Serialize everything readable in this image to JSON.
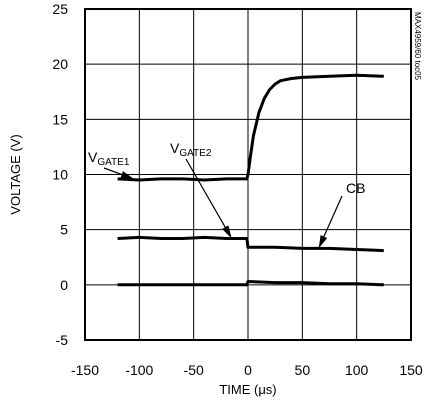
{
  "chart_data": {
    "type": "line",
    "title": "",
    "xlabel": "TIME (μs)",
    "ylabel": "VOLTAGE (V)",
    "xlim": [
      -150,
      150
    ],
    "ylim": [
      -5,
      25
    ],
    "xticks": [
      -150,
      -100,
      -50,
      0,
      50,
      100,
      150
    ],
    "yticks": [
      -5,
      0,
      5,
      10,
      15,
      20,
      25
    ],
    "grid": true,
    "legend": "none",
    "side_note": "MAX4959/60 toc05",
    "annotations": [
      {
        "text": "V",
        "sub": "GATE1",
        "points_to": [
          -105,
          9.6
        ]
      },
      {
        "text": "V",
        "sub": "GATE2",
        "points_to": [
          -15,
          4.2
        ]
      },
      {
        "text": "CB",
        "points_to": [
          65,
          3.3
        ]
      }
    ],
    "series": [
      {
        "x": [
          -120,
          -100,
          -80,
          -60,
          -40,
          -20,
          -5,
          -1,
          0,
          2,
          5,
          10,
          15,
          20,
          25,
          30,
          40,
          50,
          75,
          100,
          125
        ],
        "y": [
          9.6,
          9.5,
          9.6,
          9.6,
          9.5,
          9.6,
          9.6,
          9.6,
          10.0,
          11.5,
          13.5,
          15.6,
          16.9,
          17.7,
          18.2,
          18.5,
          18.7,
          18.8,
          18.9,
          19.0,
          18.9
        ]
      },
      {
        "x": [
          -120,
          -100,
          -80,
          -60,
          -40,
          -20,
          -1,
          0,
          25,
          50,
          75,
          100,
          125
        ],
        "y": [
          4.2,
          4.3,
          4.2,
          4.2,
          4.3,
          4.2,
          4.2,
          3.4,
          3.4,
          3.3,
          3.3,
          3.2,
          3.1
        ]
      },
      {
        "x": [
          -120,
          -100,
          -80,
          -60,
          -40,
          -20,
          -1,
          0,
          25,
          50,
          75,
          100,
          125
        ],
        "y": [
          0.0,
          0.0,
          0.0,
          0.0,
          0.0,
          0.0,
          0.0,
          0.3,
          0.2,
          0.2,
          0.1,
          0.1,
          0.0
        ]
      }
    ]
  }
}
